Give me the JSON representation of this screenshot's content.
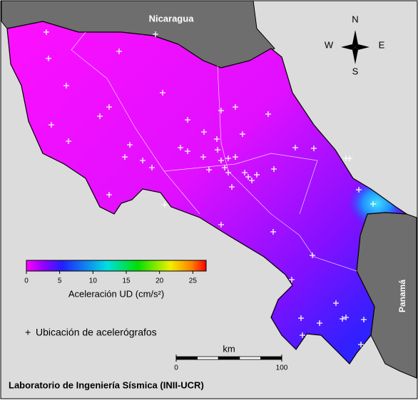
{
  "map": {
    "countries": {
      "north": "Nicaragua",
      "east": "Panamá"
    },
    "compass": {
      "n": "N",
      "s": "S",
      "w": "W",
      "e": "E"
    },
    "colorbar": {
      "label": "Aceleración UD (cm/s²)",
      "lim": [
        0,
        27
      ],
      "ticks": [
        0,
        5,
        10,
        15,
        20,
        25
      ]
    },
    "legend": "Ubicación de acelerógrafos",
    "scale": {
      "label": "km",
      "ticks": [
        0,
        100
      ]
    },
    "footer": "Laboratorio de Ingeniería Sísmica (INII-UCR)"
  }
}
